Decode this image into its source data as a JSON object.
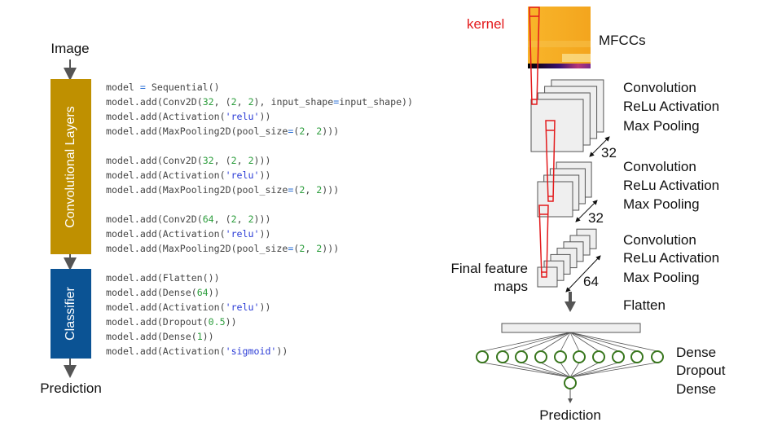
{
  "left": {
    "input_label": "Image",
    "conv_block_label": "Convolutional Layers",
    "classifier_block_label": "Classifier",
    "output_label": "Prediction",
    "colors": {
      "conv_block": "#bf9000",
      "classifier_block": "#0b5394"
    }
  },
  "code": [
    "model = Sequential()",
    "model.add(Conv2D(32, (2, 2), input_shape=input_shape))",
    "model.add(Activation('relu'))",
    "model.add(MaxPooling2D(pool_size=(2, 2)))",
    "model.add(Conv2D(32, (2, 2)))",
    "model.add(Activation('relu'))",
    "model.add(MaxPooling2D(pool_size=(2, 2)))",
    "model.add(Conv2D(64, (2, 2)))",
    "model.add(Activation('relu'))",
    "model.add(MaxPooling2D(pool_size=(2, 2)))",
    "model.add(Flatten())",
    "model.add(Dense(64))",
    "model.add(Activation('relu'))",
    "model.add(Dropout(0.5))",
    "model.add(Dense(1))",
    "model.add(Activation('sigmoid'))"
  ],
  "right": {
    "kernel_label": "kernel",
    "mfcc_label": "MFCCs",
    "layers": [
      {
        "lines": [
          "Convolution",
          "ReLu Activation",
          "Max Pooling"
        ],
        "depth": "32"
      },
      {
        "lines": [
          "Convolution",
          "ReLu Activation",
          "Max Pooling"
        ],
        "depth": "32"
      },
      {
        "lines": [
          "Convolution",
          "ReLu Activation",
          "Max Pooling"
        ],
        "depth": "64"
      }
    ],
    "final_maps_label_1": "Final feature",
    "final_maps_label_2": "maps",
    "flatten_label": "Flatten",
    "dense_labels": [
      "Dense",
      "Dropout",
      "Dense"
    ],
    "output_label": "Prediction",
    "colors": {
      "kernel": "#e31a1c",
      "neuron": "#38761d",
      "map_fill": "#efefef"
    }
  }
}
